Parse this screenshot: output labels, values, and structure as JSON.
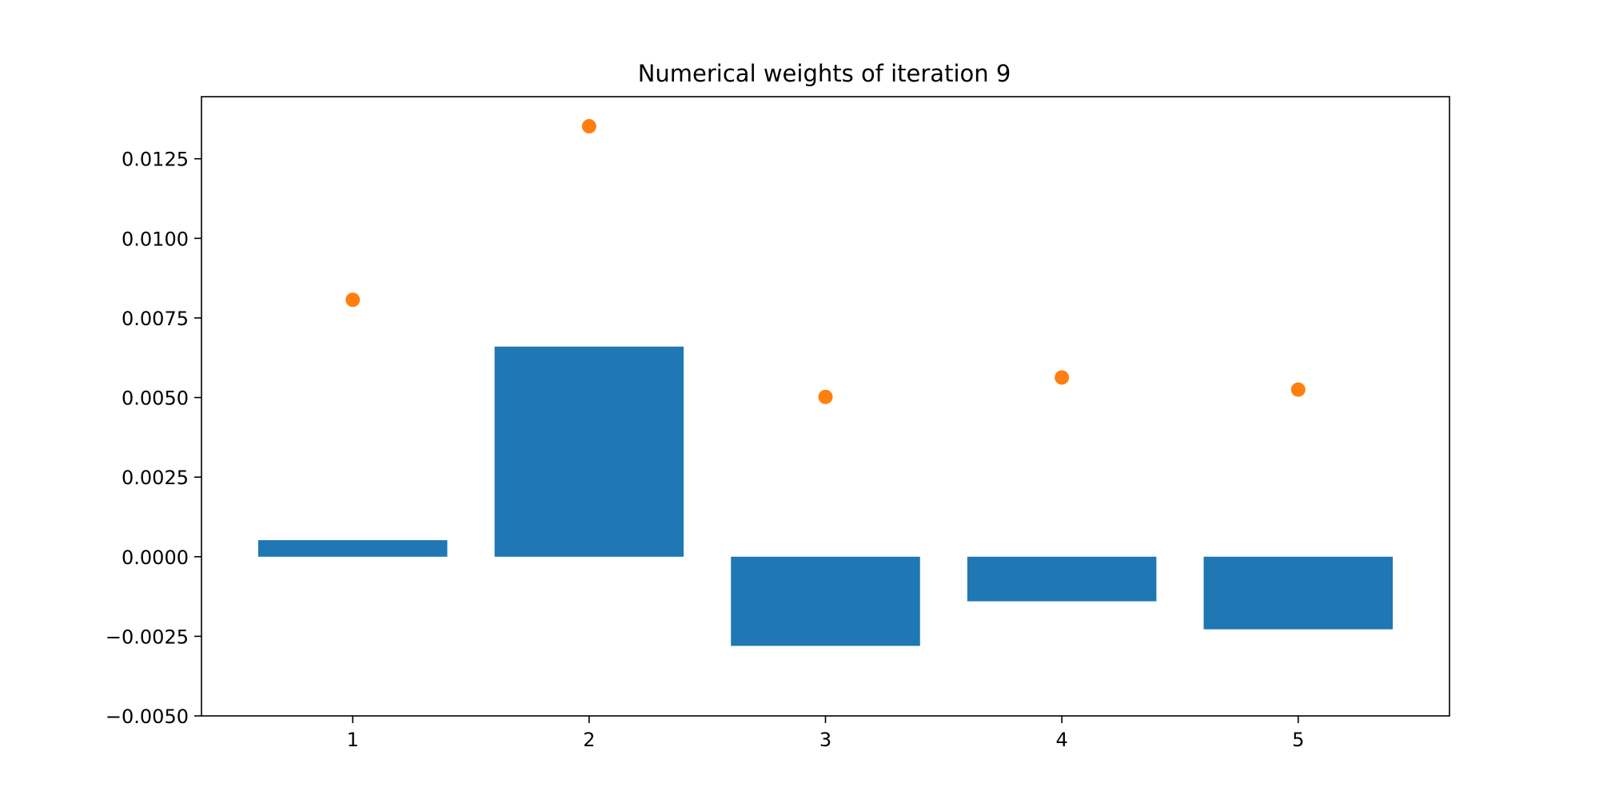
{
  "chart_data": {
    "type": "bar",
    "title": "Numerical weights of iteration 9",
    "xlabel": "",
    "ylabel": "",
    "categories": [
      "1",
      "2",
      "3",
      "4",
      "5"
    ],
    "x": [
      1,
      2,
      3,
      4,
      5
    ],
    "series": [
      {
        "type": "bar",
        "values": [
          0.00052,
          0.0066,
          -0.0028,
          -0.0014,
          -0.00228
        ],
        "color": "#1f77b4"
      },
      {
        "type": "scatter",
        "values": [
          0.00807,
          0.01352,
          0.00502,
          0.00563,
          0.00525
        ],
        "color": "#ff7f0e"
      }
    ],
    "xlim": [
      0.36,
      5.64
    ],
    "ylim": [
      -0.005,
      0.01445
    ],
    "yticks": [
      -0.005,
      -0.0025,
      0.0,
      0.0025,
      0.005,
      0.0075,
      0.01,
      0.0125
    ],
    "ytick_labels": [
      "−0.0050",
      "−0.0025",
      "0.0000",
      "0.0025",
      "0.0050",
      "0.0075",
      "0.0100",
      "0.0125"
    ],
    "grid": false,
    "legend": "none"
  }
}
